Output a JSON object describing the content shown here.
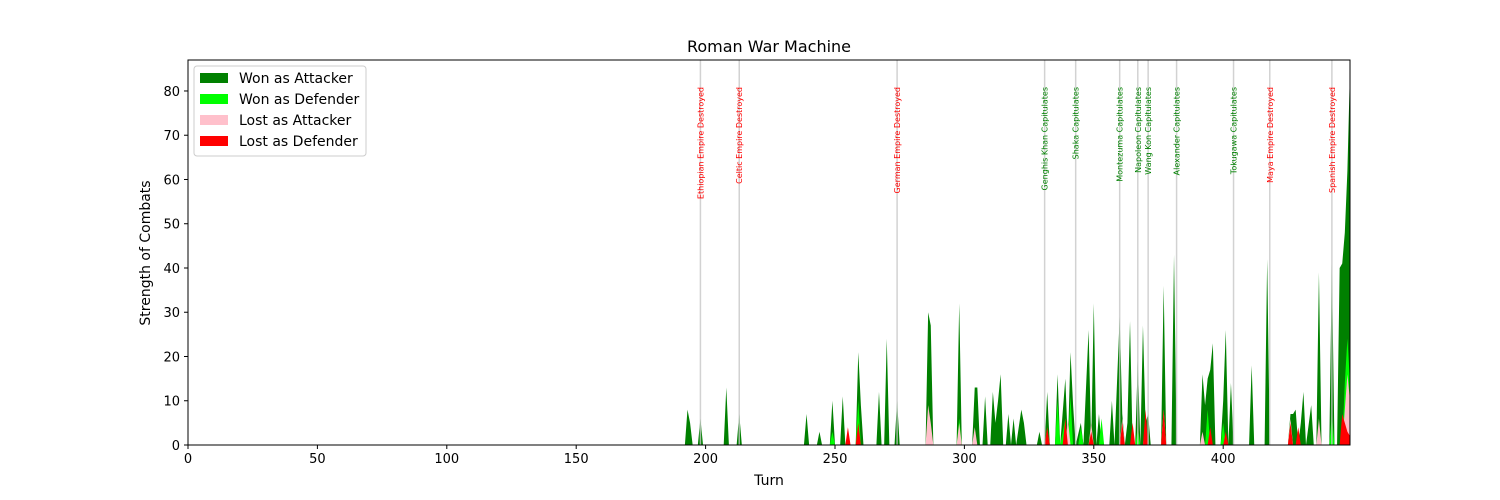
{
  "chart_data": {
    "type": "area",
    "title": "Roman War Machine",
    "xlabel": "Turn",
    "ylabel": "Strength of Combats",
    "xlim": [
      0,
      449
    ],
    "ylim": [
      0,
      87
    ],
    "xticks": [
      0,
      50,
      100,
      150,
      200,
      250,
      300,
      350,
      400
    ],
    "yticks": [
      0,
      10,
      20,
      30,
      40,
      50,
      60,
      70,
      80
    ],
    "grid": false,
    "legend_position": "top-left",
    "series": [
      {
        "name": "Won as Attacker",
        "color": "#008000",
        "points": [
          [
            192,
            0
          ],
          [
            193,
            8
          ],
          [
            194,
            5
          ],
          [
            195,
            0
          ],
          [
            197,
            0
          ],
          [
            198,
            6
          ],
          [
            199,
            0
          ],
          [
            207,
            0
          ],
          [
            208,
            13
          ],
          [
            209,
            0
          ],
          [
            212,
            0
          ],
          [
            213,
            7
          ],
          [
            214,
            0
          ],
          [
            238,
            0
          ],
          [
            239,
            7
          ],
          [
            240,
            0
          ],
          [
            243,
            0
          ],
          [
            244,
            3
          ],
          [
            245,
            0
          ],
          [
            248,
            0
          ],
          [
            249,
            10
          ],
          [
            250,
            0
          ],
          [
            252,
            0
          ],
          [
            253,
            11
          ],
          [
            254,
            0
          ],
          [
            258,
            0
          ],
          [
            259,
            21
          ],
          [
            260,
            9
          ],
          [
            261,
            0
          ],
          [
            266,
            0
          ],
          [
            267,
            12
          ],
          [
            268,
            0
          ],
          [
            269,
            0
          ],
          [
            270,
            24
          ],
          [
            271,
            0
          ],
          [
            273,
            0
          ],
          [
            274,
            10
          ],
          [
            275,
            0
          ],
          [
            285,
            0
          ],
          [
            286,
            30
          ],
          [
            287,
            27
          ],
          [
            288,
            0
          ],
          [
            297,
            0
          ],
          [
            298,
            32
          ],
          [
            299,
            0
          ],
          [
            303,
            0
          ],
          [
            304,
            13
          ],
          [
            305,
            13
          ],
          [
            306,
            0
          ],
          [
            307,
            0
          ],
          [
            308,
            11
          ],
          [
            309,
            0
          ],
          [
            310,
            0
          ],
          [
            311,
            12
          ],
          [
            312,
            5
          ],
          [
            313,
            10
          ],
          [
            314,
            16
          ],
          [
            315,
            0
          ],
          [
            316,
            0
          ],
          [
            317,
            7
          ],
          [
            318,
            0
          ],
          [
            319,
            6
          ],
          [
            320,
            0
          ],
          [
            322,
            8
          ],
          [
            323,
            5
          ],
          [
            324,
            0
          ],
          [
            328,
            0
          ],
          [
            329,
            3
          ],
          [
            330,
            0
          ],
          [
            331,
            0
          ],
          [
            332,
            12
          ],
          [
            333,
            0
          ],
          [
            335,
            0
          ],
          [
            336,
            16
          ],
          [
            337,
            0
          ],
          [
            339,
            15
          ],
          [
            340,
            0
          ],
          [
            341,
            21
          ],
          [
            342,
            9
          ],
          [
            343,
            0
          ],
          [
            345,
            5
          ],
          [
            346,
            0
          ],
          [
            348,
            26
          ],
          [
            349,
            0
          ],
          [
            350,
            32
          ],
          [
            351,
            0
          ],
          [
            352,
            7
          ],
          [
            353,
            0
          ],
          [
            356,
            0
          ],
          [
            357,
            10
          ],
          [
            358,
            0
          ],
          [
            360,
            29
          ],
          [
            361,
            7
          ],
          [
            362,
            0
          ],
          [
            363,
            5
          ],
          [
            364,
            28
          ],
          [
            365,
            0
          ],
          [
            366,
            0
          ],
          [
            367,
            19
          ],
          [
            368,
            0
          ],
          [
            369,
            27
          ],
          [
            370,
            5
          ],
          [
            371,
            7
          ],
          [
            372,
            0
          ],
          [
            376,
            0
          ],
          [
            377,
            36
          ],
          [
            378,
            0
          ],
          [
            380,
            0
          ],
          [
            381,
            43
          ],
          [
            382,
            0
          ],
          [
            391,
            0
          ],
          [
            392,
            16
          ],
          [
            393,
            9
          ],
          [
            394,
            15
          ],
          [
            395,
            17
          ],
          [
            396,
            23
          ],
          [
            397,
            0
          ],
          [
            399,
            0
          ],
          [
            400,
            10
          ],
          [
            401,
            26
          ],
          [
            402,
            0
          ],
          [
            403,
            14
          ],
          [
            404,
            0
          ],
          [
            410,
            0
          ],
          [
            411,
            18
          ],
          [
            412,
            0
          ],
          [
            416,
            0
          ],
          [
            417,
            42
          ],
          [
            418,
            0
          ],
          [
            425,
            0
          ],
          [
            426,
            7
          ],
          [
            427,
            7
          ],
          [
            428,
            8
          ],
          [
            429,
            0
          ],
          [
            430,
            5
          ],
          [
            431,
            12
          ],
          [
            432,
            0
          ],
          [
            434,
            9
          ],
          [
            435,
            0
          ],
          [
            436,
            0
          ],
          [
            437,
            39
          ],
          [
            438,
            0
          ],
          [
            440,
            0
          ],
          [
            441,
            0
          ],
          [
            442,
            41
          ],
          [
            443,
            0
          ],
          [
            444,
            0
          ],
          [
            445,
            40
          ],
          [
            446,
            41
          ],
          [
            447,
            48
          ],
          [
            448,
            62
          ],
          [
            449,
            85
          ]
        ]
      },
      {
        "name": "Won as Defender",
        "color": "#00ff00",
        "points": [
          [
            248,
            0
          ],
          [
            249,
            3
          ],
          [
            250,
            0
          ],
          [
            258,
            0
          ],
          [
            259,
            10
          ],
          [
            260,
            0
          ],
          [
            297,
            0
          ],
          [
            298,
            6
          ],
          [
            299,
            0
          ],
          [
            331,
            0
          ],
          [
            332,
            4
          ],
          [
            333,
            0
          ],
          [
            335,
            0
          ],
          [
            336,
            10
          ],
          [
            337,
            0
          ],
          [
            339,
            6
          ],
          [
            340,
            0
          ],
          [
            341,
            11
          ],
          [
            342,
            0
          ],
          [
            344,
            0
          ],
          [
            345,
            4
          ],
          [
            346,
            0
          ],
          [
            352,
            0
          ],
          [
            353,
            6
          ],
          [
            354,
            0
          ],
          [
            360,
            0
          ],
          [
            361,
            3
          ],
          [
            362,
            0
          ],
          [
            366,
            0
          ],
          [
            367,
            4
          ],
          [
            368,
            0
          ],
          [
            393,
            0
          ],
          [
            394,
            8
          ],
          [
            395,
            0
          ],
          [
            399,
            0
          ],
          [
            400,
            5
          ],
          [
            401,
            0
          ],
          [
            441,
            0
          ],
          [
            442,
            7
          ],
          [
            443,
            0
          ],
          [
            446,
            0
          ],
          [
            447,
            14
          ],
          [
            448,
            24
          ],
          [
            449,
            14
          ]
        ]
      },
      {
        "name": "Lost as Attacker",
        "color": "#ffc0cb",
        "points": [
          [
            285,
            0
          ],
          [
            286,
            9
          ],
          [
            287,
            5
          ],
          [
            288,
            0
          ],
          [
            297,
            0
          ],
          [
            298,
            5
          ],
          [
            299,
            0
          ],
          [
            303,
            0
          ],
          [
            304,
            4
          ],
          [
            305,
            0
          ],
          [
            331,
            0
          ],
          [
            332,
            3
          ],
          [
            333,
            0
          ],
          [
            339,
            0
          ],
          [
            340,
            6
          ],
          [
            341,
            0
          ],
          [
            348,
            0
          ],
          [
            349,
            5
          ],
          [
            350,
            0
          ],
          [
            360,
            0
          ],
          [
            361,
            6
          ],
          [
            362,
            0
          ],
          [
            369,
            0
          ],
          [
            370,
            5
          ],
          [
            371,
            0
          ],
          [
            376,
            0
          ],
          [
            377,
            8
          ],
          [
            378,
            0
          ],
          [
            391,
            0
          ],
          [
            392,
            3
          ],
          [
            393,
            0
          ],
          [
            425,
            0
          ],
          [
            426,
            6
          ],
          [
            427,
            0
          ],
          [
            436,
            0
          ],
          [
            437,
            6
          ],
          [
            438,
            0
          ],
          [
            446,
            0
          ],
          [
            447,
            8
          ],
          [
            448,
            16
          ],
          [
            449,
            10
          ]
        ]
      },
      {
        "name": "Lost as Defender",
        "color": "#ff0000",
        "points": [
          [
            254,
            0
          ],
          [
            255,
            4
          ],
          [
            256,
            0
          ],
          [
            258,
            0
          ],
          [
            259,
            5
          ],
          [
            260,
            0
          ],
          [
            331,
            0
          ],
          [
            332,
            4
          ],
          [
            333,
            0
          ],
          [
            338,
            0
          ],
          [
            339,
            6
          ],
          [
            340,
            0
          ],
          [
            348,
            0
          ],
          [
            349,
            3
          ],
          [
            350,
            0
          ],
          [
            360,
            0
          ],
          [
            361,
            5
          ],
          [
            362,
            0
          ],
          [
            364,
            0
          ],
          [
            365,
            5
          ],
          [
            366,
            0
          ],
          [
            369,
            0
          ],
          [
            370,
            8
          ],
          [
            371,
            0
          ],
          [
            376,
            0
          ],
          [
            377,
            8
          ],
          [
            378,
            0
          ],
          [
            394,
            0
          ],
          [
            395,
            4
          ],
          [
            396,
            0
          ],
          [
            400,
            0
          ],
          [
            401,
            3
          ],
          [
            402,
            0
          ],
          [
            425,
            0
          ],
          [
            426,
            5
          ],
          [
            427,
            0
          ],
          [
            428,
            0
          ],
          [
            429,
            4
          ],
          [
            430,
            0
          ],
          [
            445,
            0
          ],
          [
            446,
            7
          ],
          [
            447,
            5
          ],
          [
            448,
            3
          ],
          [
            449,
            2
          ]
        ]
      }
    ],
    "events": [
      {
        "x": 198,
        "label": "Ethiopian Empire Destroyed",
        "color": "#ff0000"
      },
      {
        "x": 213,
        "label": "Celtic Empire Destroyed",
        "color": "#ff0000"
      },
      {
        "x": 274,
        "label": "German Empire Destroyed",
        "color": "#ff0000"
      },
      {
        "x": 331,
        "label": "Genghis Khan Capitulates",
        "color": "#008000"
      },
      {
        "x": 343,
        "label": "Shaka Capitulates",
        "color": "#008000"
      },
      {
        "x": 360,
        "label": "Montezuma Capitulates",
        "color": "#008000"
      },
      {
        "x": 367,
        "label": "Napoleon Capitulates",
        "color": "#008000"
      },
      {
        "x": 371,
        "label": "Wang Kon Capitulates",
        "color": "#008000"
      },
      {
        "x": 382,
        "label": "Alexander Capitulates",
        "color": "#008000"
      },
      {
        "x": 404,
        "label": "Tokugawa Capitulates",
        "color": "#008000"
      },
      {
        "x": 418,
        "label": "Maya Empire Destroyed",
        "color": "#ff0000"
      },
      {
        "x": 442,
        "label": "Spanish Empire Destroyed",
        "color": "#ff0000"
      }
    ]
  }
}
